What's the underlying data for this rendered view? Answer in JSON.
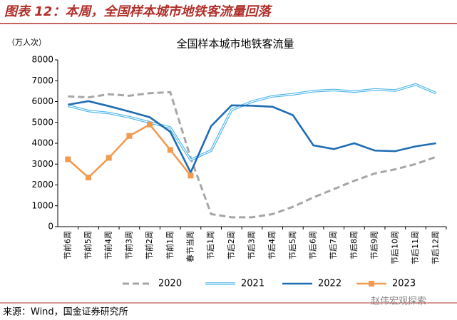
{
  "header": {
    "title": "图表 12：本周，全国样本城市地铁客流量回落"
  },
  "chart_data": {
    "type": "line",
    "title": "全国样本城市地铁客流量",
    "y_label": "（万人次）",
    "categories": [
      "节前6周",
      "节前5周",
      "节前4周",
      "节前3周",
      "节前2周",
      "节前1周",
      "春节当周",
      "节后1周",
      "节后2周",
      "节后3周",
      "节后4周",
      "节后5周",
      "节后6周",
      "节后7周",
      "节后8周",
      "节后9周",
      "节后10周",
      "节后11周",
      "节后12周"
    ],
    "series": [
      {
        "name": "2020",
        "color": "#a6a6a6",
        "line_style": "dashed",
        "values": [
          6250,
          6200,
          6350,
          6280,
          6400,
          6450,
          3300,
          600,
          450,
          450,
          600,
          950,
          1400,
          1800,
          2200,
          2550,
          2750,
          3000,
          3350
        ]
      },
      {
        "name": "2021",
        "color": "#4fb6ea",
        "line_style": "double",
        "values": [
          5800,
          5550,
          5450,
          5250,
          5000,
          4750,
          3200,
          3650,
          5600,
          6000,
          6250,
          6350,
          6500,
          6550,
          6480,
          6580,
          6530,
          6820,
          6400
        ]
      },
      {
        "name": "2022",
        "color": "#1f6cb3",
        "line_style": "solid",
        "values": [
          5850,
          6020,
          5780,
          5520,
          5250,
          4550,
          2600,
          4820,
          5820,
          5800,
          5750,
          5350,
          3900,
          3720,
          4000,
          3650,
          3620,
          3850,
          4000
        ]
      },
      {
        "name": "2023",
        "color": "#f29a50",
        "line_style": "solid",
        "marker": "square",
        "values": [
          3230,
          2360,
          3300,
          4350,
          4900,
          3680,
          2450,
          null,
          null,
          null,
          null,
          null,
          null,
          null,
          null,
          null,
          null,
          null,
          null
        ]
      }
    ],
    "ylim": [
      0,
      8000
    ],
    "yticks": [
      0,
      1000,
      2000,
      3000,
      4000,
      5000,
      6000,
      7000,
      8000
    ],
    "legend": "bottom"
  },
  "footer": {
    "source": "来源：Wind，国金证券研究所",
    "watermark": "赵伟宏观探索"
  }
}
